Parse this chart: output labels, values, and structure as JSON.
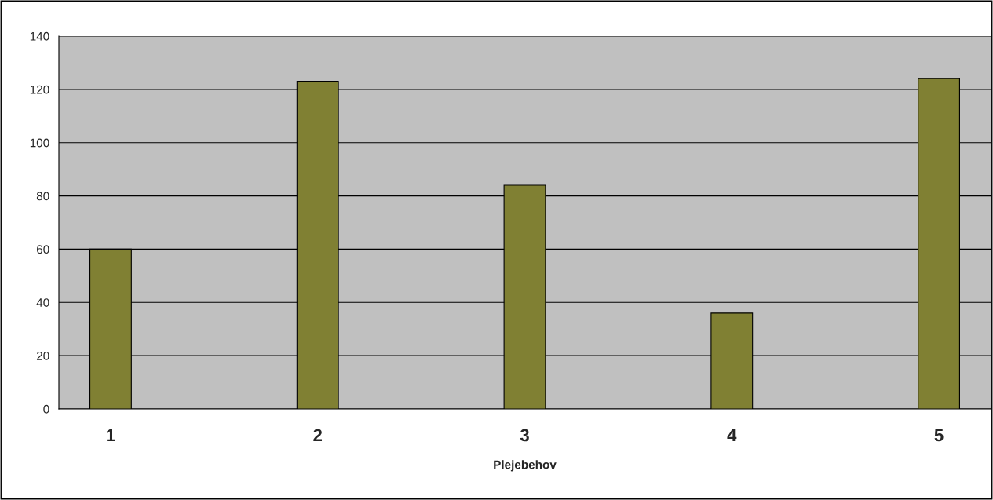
{
  "chart_data": {
    "type": "bar",
    "xlabel": "Plejebehov",
    "categories": [
      "1",
      null,
      "2",
      null,
      "3",
      null,
      "4",
      null,
      "5"
    ],
    "values": [
      60,
      null,
      123,
      null,
      84,
      null,
      36,
      null,
      124
    ],
    "color": "#808033",
    "ylim": [
      0,
      140
    ],
    "yticks": [
      0,
      20,
      40,
      60,
      80,
      100,
      120,
      140
    ],
    "grid": "y",
    "legend": false
  }
}
